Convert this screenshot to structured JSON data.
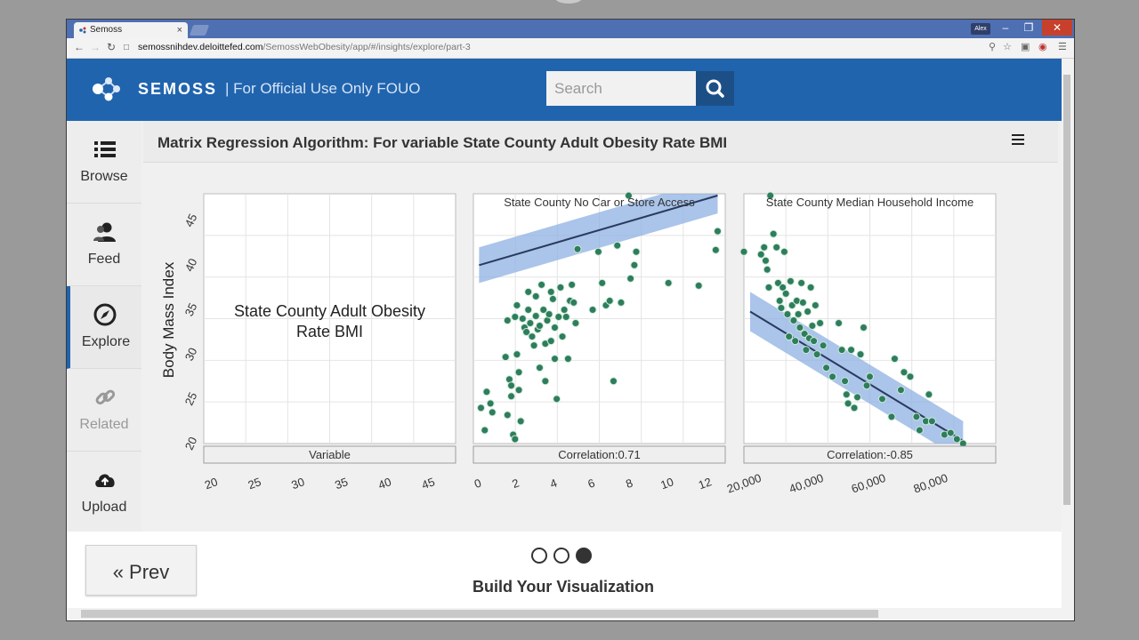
{
  "browser": {
    "tab_title": "Semoss",
    "tab_close": "×",
    "user_badge": "Alex",
    "url_host": "semossnihdev.deloittefed.com",
    "url_path": "/SemossWebObesity/app/#/insights/explore/part-3",
    "buttons": {
      "minimize": "–",
      "maximize": "❐",
      "close": "✕"
    }
  },
  "app": {
    "brand": "SEMOSS",
    "brand_sub": "| For Official Use Only FOUO",
    "search_placeholder": "Search",
    "accent_color": "#2064ae"
  },
  "sidebar": {
    "items": [
      {
        "label": "Browse",
        "icon": "list-icon"
      },
      {
        "label": "Feed",
        "icon": "users-icon"
      },
      {
        "label": "Explore",
        "icon": "compass-icon",
        "active": true
      },
      {
        "label": "Related",
        "icon": "link-icon",
        "disabled": true
      },
      {
        "label": "Upload",
        "icon": "cloud-upload-icon"
      }
    ]
  },
  "main": {
    "title": "Matrix Regression Algorithm: For variable State County Adult Obesity Rate BMI"
  },
  "chart_data": {
    "type": "scatter",
    "ylabel": "Body Mass Index",
    "yticks": [
      "20",
      "25",
      "30",
      "35",
      "40",
      "45"
    ],
    "ylim": [
      20,
      48
    ],
    "grid": true,
    "point_color": "#2e7d5b",
    "band_color": "#8db0e3",
    "line_color": "#2a3a5c",
    "panels": [
      {
        "strip_top": "",
        "center_text": "State County Adult Obesity Rate BMI",
        "strip_bottom": "Variable",
        "xticks": [
          "20",
          "25",
          "30",
          "35",
          "40",
          "45"
        ],
        "xlim": [
          19,
          48
        ],
        "points": [],
        "fit": null
      },
      {
        "strip_top": "State County No Car or Store Access",
        "strip_bottom": "Correlation:0.71",
        "xticks": [
          "0",
          "2",
          "4",
          "6",
          "8",
          "10",
          "12"
        ],
        "xlim": [
          -0.3,
          13
        ],
        "fit": {
          "x": [
            0,
            12.6
          ],
          "y": [
            40,
            47.8
          ],
          "band": 2.0
        },
        "points": [
          [
            0.1,
            24.0
          ],
          [
            0.3,
            21.5
          ],
          [
            0.4,
            25.8
          ],
          [
            0.6,
            24.5
          ],
          [
            0.7,
            23.5
          ],
          [
            1.4,
            29.7
          ],
          [
            1.5,
            23.2
          ],
          [
            1.6,
            27.2
          ],
          [
            1.7,
            25.3
          ],
          [
            1.8,
            21.0
          ],
          [
            1.9,
            20.5
          ],
          [
            1.5,
            33.8
          ],
          [
            1.7,
            26.5
          ],
          [
            1.9,
            34.2
          ],
          [
            2.0,
            35.5
          ],
          [
            2.0,
            30.0
          ],
          [
            2.1,
            28.0
          ],
          [
            2.1,
            26.0
          ],
          [
            2.2,
            22.5
          ],
          [
            2.3,
            34.0
          ],
          [
            2.4,
            33.0
          ],
          [
            2.5,
            32.5
          ],
          [
            2.6,
            35.0
          ],
          [
            2.7,
            33.5
          ],
          [
            2.8,
            32.0
          ],
          [
            2.9,
            31.0
          ],
          [
            3.0,
            34.3
          ],
          [
            3.1,
            32.8
          ],
          [
            3.2,
            33.2
          ],
          [
            3.2,
            28.5
          ],
          [
            3.3,
            37.8
          ],
          [
            3.4,
            35.0
          ],
          [
            3.5,
            31.2
          ],
          [
            3.5,
            27.0
          ],
          [
            3.6,
            33.8
          ],
          [
            3.7,
            34.5
          ],
          [
            3.8,
            37.0
          ],
          [
            3.8,
            31.5
          ],
          [
            3.9,
            36.2
          ],
          [
            4.0,
            33.0
          ],
          [
            4.1,
            25.0
          ],
          [
            4.2,
            34.2
          ],
          [
            4.3,
            37.5
          ],
          [
            4.4,
            32.0
          ],
          [
            4.5,
            35.0
          ],
          [
            4.6,
            34.2
          ],
          [
            4.7,
            29.5
          ],
          [
            4.8,
            36.0
          ],
          [
            4.9,
            37.8
          ],
          [
            5.0,
            35.8
          ],
          [
            5.1,
            33.5
          ],
          [
            5.2,
            41.8
          ],
          [
            4.0,
            29.5
          ],
          [
            3.0,
            36.5
          ],
          [
            2.6,
            37.0
          ],
          [
            6.0,
            35.0
          ],
          [
            6.3,
            41.5
          ],
          [
            6.7,
            35.5
          ],
          [
            6.9,
            36.0
          ],
          [
            7.1,
            27.0
          ],
          [
            7.5,
            35.8
          ],
          [
            6.5,
            38.0
          ],
          [
            7.3,
            42.2
          ],
          [
            8.0,
            38.5
          ],
          [
            8.2,
            40.0
          ],
          [
            8.3,
            41.5
          ],
          [
            7.9,
            47.8
          ],
          [
            10.0,
            38.0
          ],
          [
            11.6,
            37.7
          ],
          [
            12.6,
            43.8
          ],
          [
            12.5,
            41.7
          ]
        ]
      },
      {
        "strip_top": "State County Median Household Income",
        "strip_bottom": "Correlation:-0.85",
        "xticks": [
          "20,000",
          "40,000",
          "60,000",
          "80,000"
        ],
        "xlim": [
          19500,
          100500
        ],
        "fit": {
          "x": [
            21500,
            90000
          ],
          "y": [
            34.8,
            20.3
          ],
          "band": 2.2
        },
        "points": [
          [
            19500,
            41.5
          ],
          [
            25000,
            41.2
          ],
          [
            26000,
            42.0
          ],
          [
            26500,
            40.5
          ],
          [
            27000,
            39.5
          ],
          [
            27500,
            37.5
          ],
          [
            28000,
            47.8
          ],
          [
            29000,
            43.5
          ],
          [
            30000,
            42.0
          ],
          [
            30500,
            38.0
          ],
          [
            31000,
            36.0
          ],
          [
            31500,
            35.2
          ],
          [
            32000,
            37.5
          ],
          [
            32500,
            41.5
          ],
          [
            33000,
            36.8
          ],
          [
            33500,
            34.5
          ],
          [
            34000,
            32.0
          ],
          [
            34500,
            38.2
          ],
          [
            35000,
            35.5
          ],
          [
            35500,
            33.8
          ],
          [
            36000,
            31.5
          ],
          [
            36500,
            36.0
          ],
          [
            37000,
            34.5
          ],
          [
            37500,
            33.0
          ],
          [
            38000,
            38.0
          ],
          [
            38500,
            35.8
          ],
          [
            39000,
            32.3
          ],
          [
            39500,
            30.5
          ],
          [
            40000,
            34.8
          ],
          [
            40500,
            31.8
          ],
          [
            41000,
            37.5
          ],
          [
            41500,
            33.2
          ],
          [
            42000,
            31.5
          ],
          [
            42500,
            35.5
          ],
          [
            43000,
            30.0
          ],
          [
            44000,
            33.5
          ],
          [
            45000,
            31.0
          ],
          [
            46000,
            28.5
          ],
          [
            48000,
            27.5
          ],
          [
            50000,
            33.5
          ],
          [
            51000,
            30.5
          ],
          [
            52000,
            27.0
          ],
          [
            52500,
            25.5
          ],
          [
            53000,
            24.5
          ],
          [
            54000,
            30.5
          ],
          [
            55000,
            24.0
          ],
          [
            56000,
            25.2
          ],
          [
            57000,
            30.0
          ],
          [
            58000,
            33.0
          ],
          [
            59000,
            26.5
          ],
          [
            60000,
            27.5
          ],
          [
            64000,
            25.0
          ],
          [
            67000,
            23.0
          ],
          [
            68000,
            29.5
          ],
          [
            70000,
            26.0
          ],
          [
            71000,
            28.0
          ],
          [
            73000,
            27.5
          ],
          [
            75000,
            23.0
          ],
          [
            76000,
            21.5
          ],
          [
            78000,
            22.5
          ],
          [
            79000,
            25.5
          ],
          [
            80000,
            22.5
          ],
          [
            84000,
            21.0
          ],
          [
            86000,
            21.2
          ],
          [
            88000,
            20.5
          ],
          [
            90000,
            20.0
          ]
        ]
      }
    ]
  },
  "footer": {
    "prev_label": "« Prev",
    "step_label": "Build Your Visualization",
    "steps": 3,
    "current_step": 3
  }
}
